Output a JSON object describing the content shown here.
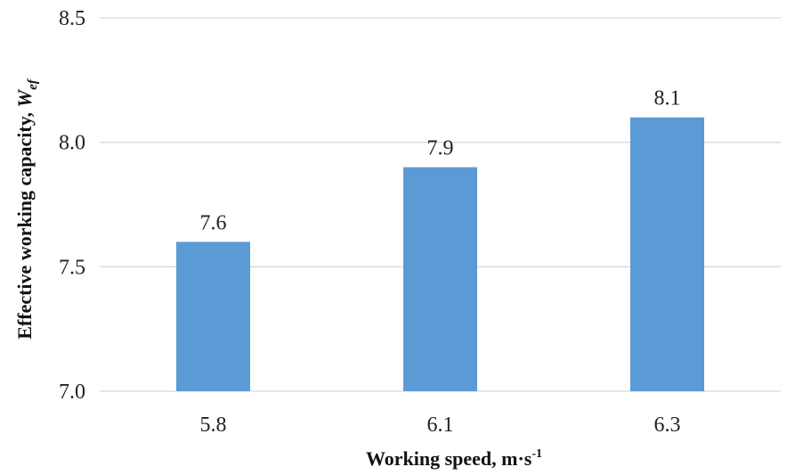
{
  "chart_data": {
    "type": "bar",
    "categories": [
      "5.8",
      "6.1",
      "6.3"
    ],
    "values": [
      7.6,
      7.9,
      8.1
    ],
    "data_labels": [
      "7.6",
      "7.9",
      "8.1"
    ],
    "y_ticks": [
      "7.0",
      "7.5",
      "8.0",
      "8.5"
    ],
    "ylim": [
      7.0,
      8.5
    ],
    "xlabel": {
      "main": "Working speed, m·s",
      "sup": "-1"
    },
    "ylabel": {
      "main": "Effective working capacity, ",
      "sub_var": "W",
      "sub": "ef"
    },
    "grid": true,
    "legend": "none",
    "bar_color": "#5b9bd5",
    "grid_color": "#d9d9d9"
  }
}
